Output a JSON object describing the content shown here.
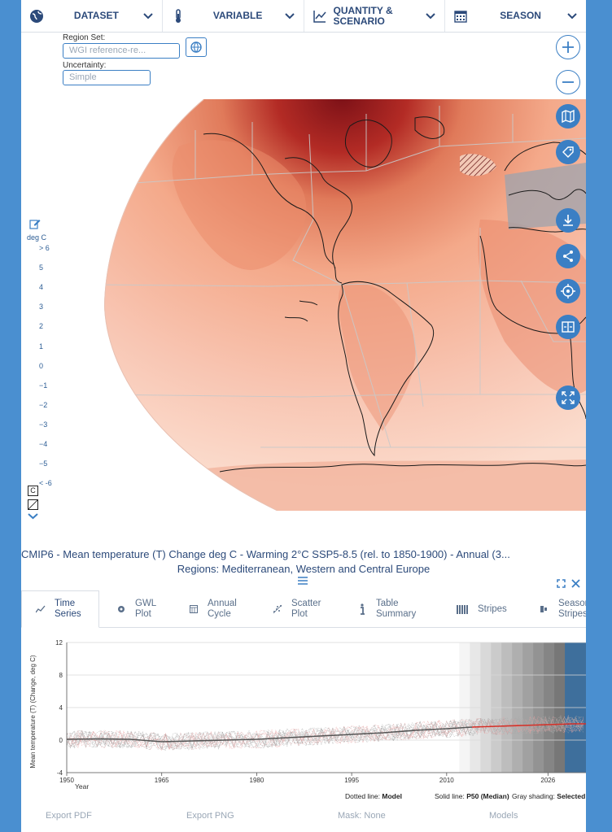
{
  "menu": [
    {
      "label": "DATASET",
      "icon": "globe-icon"
    },
    {
      "label": "VARIABLE",
      "icon": "thermometer-icon"
    },
    {
      "label": "QUANTITY & SCENARIO",
      "icon": "line-chart-icon"
    },
    {
      "label": "SEASON",
      "icon": "calendar-icon"
    }
  ],
  "controls": {
    "region_set_label": "Region Set:",
    "region_set_value": "WGI reference-re...",
    "uncertainty_label": "Uncertainty:",
    "uncertainty_value": "Simple"
  },
  "legend": {
    "unit": "deg C",
    "ticks": [
      "> 6",
      "5",
      "4",
      "3",
      "2",
      "1",
      "0",
      "−1",
      "−2",
      "−3",
      "−4",
      "−5",
      "< -6"
    ],
    "c_label": "C"
  },
  "map_tools": [
    "zoom-in-icon",
    "zoom-out-icon",
    "map-icon",
    "tag-icon",
    "download-icon",
    "share-icon",
    "crosshair-icon",
    "compare-icon",
    "fullscreen-icon"
  ],
  "caption": {
    "line1": "CMIP6 - Mean temperature (T) Change deg C - Warming 2°C SSP5-8.5 (rel. to 1850-1900) - Annual (3...",
    "line2": "Regions: Mediterranean, Western and Central Europe"
  },
  "tabs": [
    {
      "label1": "Time",
      "label2": "Series",
      "icon": "time-series-icon",
      "active": true
    },
    {
      "label1": "GWL",
      "label2": "Plot",
      "icon": "gwl-icon"
    },
    {
      "label1": "Annual",
      "label2": "Cycle",
      "icon": "annual-cycle-icon"
    },
    {
      "label1": "Scatter",
      "label2": "Plot",
      "icon": "scatter-icon"
    },
    {
      "label1": "Table",
      "label2": "Summary",
      "icon": "info-icon"
    },
    {
      "label1": "Stripes",
      "label2": "",
      "icon": "stripes-icon"
    },
    {
      "label1": "Seasonal",
      "label2": "Stripes",
      "icon": "seasonal-stripes-icon"
    }
  ],
  "chart_data": {
    "type": "line",
    "ylabel": "Mean temperature (T) (Change, deg C)",
    "xlabel": "Year",
    "xlim": [
      1950,
      2032
    ],
    "ylim": [
      -4,
      12
    ],
    "yticks": [
      12,
      8,
      4,
      0,
      -4
    ],
    "xticks": [
      1950,
      1965,
      1980,
      1995,
      2010,
      2026
    ],
    "series": [
      {
        "x": [
          1950,
          1955,
          1960,
          1965,
          1970,
          1975,
          1980,
          1985,
          1990,
          1995,
          2000,
          2005,
          2010,
          2014
        ],
        "values": [
          0.1,
          0.15,
          0.1,
          -0.2,
          -0.1,
          0.0,
          0.1,
          0.3,
          0.5,
          0.7,
          0.9,
          1.2,
          1.4,
          1.6
        ]
      },
      {
        "x": [
          2014,
          2018,
          2022,
          2026,
          2030,
          2032
        ],
        "values": [
          1.6,
          1.7,
          1.8,
          1.9,
          2.0,
          2.0
        ]
      }
    ],
    "shading_start": 2012,
    "footnote": {
      "dotted_label": "Dotted line:",
      "dotted_value": "Model",
      "solid_label": "Solid line:",
      "solid_value": "P50 (Median)",
      "gray_label": "Gray shading:",
      "gray_value": "Selected perio"
    }
  },
  "bottom": {
    "export_pdf": "Export PDF",
    "export_png": "Export PNG",
    "mask": "Mask: None",
    "models": "Models"
  },
  "colors": {
    "accent": "#3b7fc4",
    "frame": "#4a8fd0",
    "warm_high": "#8b1a1a",
    "warm_low": "#f7c4b0",
    "series_past": "#555555",
    "series_future": "#d62f27"
  }
}
